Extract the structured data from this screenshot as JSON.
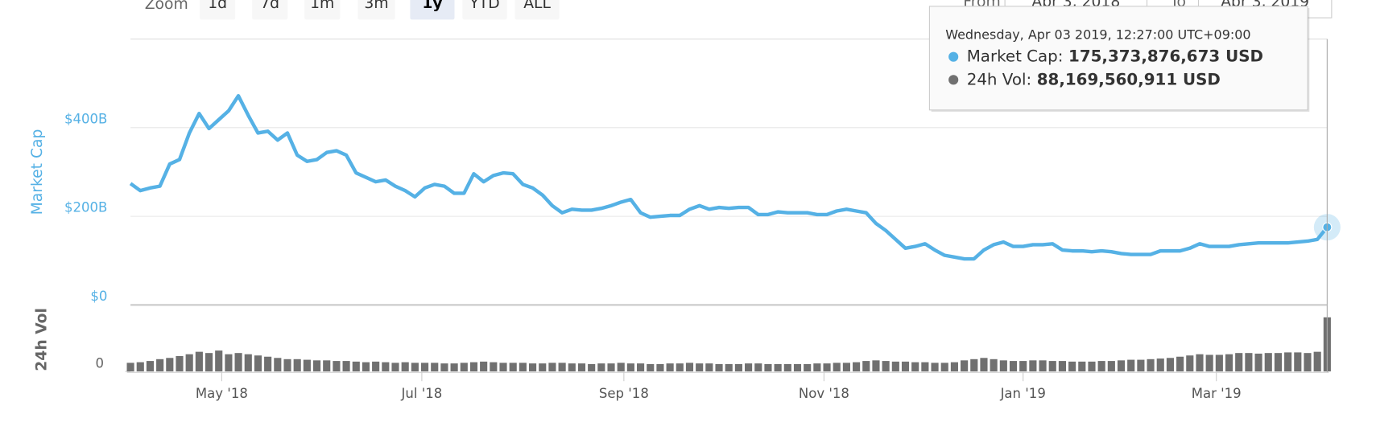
{
  "toolbar": {
    "zoom_label": "Zoom",
    "buttons": [
      "1d",
      "7d",
      "1m",
      "3m",
      "1y",
      "YTD",
      "ALL"
    ],
    "selected": "1y",
    "from_label": "From",
    "from_value": "Apr 3, 2018",
    "to_label": "To",
    "to_value": "Apr 3, 2019"
  },
  "tooltip": {
    "date": "Wednesday, Apr 03 2019, 12:27:00 UTC+09:00",
    "rows": [
      {
        "label": "Market Cap:",
        "value": "175,373,876,673 USD",
        "color": "#55b1e5"
      },
      {
        "label": "24h Vol:",
        "value": "88,169,560,911 USD",
        "color": "#707070"
      }
    ]
  },
  "chart_data": {
    "type": "line",
    "xlim": [
      0,
      122
    ],
    "xticks": [
      {
        "value": 9.3,
        "label": "May '18"
      },
      {
        "value": 29.7,
        "label": "Jul '18"
      },
      {
        "value": 50.3,
        "label": "Sep '18"
      },
      {
        "value": 70.7,
        "label": "Nov '18"
      },
      {
        "value": 91,
        "label": "Jan '19"
      },
      {
        "value": 110.7,
        "label": "Mar '19"
      }
    ],
    "ylim": [
      0,
      600
    ],
    "yticks": [
      {
        "value": 0,
        "label": "$0"
      },
      {
        "value": 200,
        "label": "$200B"
      },
      {
        "value": 400,
        "label": "$400B"
      }
    ],
    "y2lim": [
      0,
      104
    ],
    "y2ticks": [
      0
    ],
    "grid": true,
    "series": [
      {
        "name": "Market Cap",
        "color": "#55b1e5",
        "values": [
          274,
          258,
          264,
          268,
          318,
          328,
          388,
          432,
          398,
          418,
          438,
          472,
          428,
          388,
          392,
          372,
          388,
          338,
          324,
          328,
          344,
          348,
          338,
          298,
          288,
          278,
          282,
          268,
          258,
          244,
          264,
          272,
          268,
          252,
          252,
          296,
          278,
          292,
          298,
          296,
          272,
          264,
          248,
          224,
          208,
          216,
          214,
          214,
          218,
          224,
          232,
          238,
          208,
          198,
          200,
          202,
          202,
          216,
          224,
          216,
          220,
          218,
          220,
          220,
          204,
          204,
          210,
          208,
          208,
          208,
          204,
          204,
          212,
          216,
          212,
          208,
          184,
          168,
          148,
          128,
          132,
          138,
          124,
          112,
          108,
          104,
          104,
          124,
          136,
          142,
          132,
          132,
          136,
          136,
          138,
          124,
          122,
          122,
          120,
          122,
          120,
          116,
          114,
          114,
          114,
          122,
          122,
          122,
          128,
          138,
          132,
          132,
          132,
          136,
          138,
          140,
          140,
          140,
          140,
          142,
          144,
          148,
          175.37
        ]
      },
      {
        "name": "24h Vol",
        "type": "bar",
        "axis": "y2",
        "color": "#707070",
        "values": [
          14,
          15,
          17,
          20,
          22,
          25,
          28,
          32,
          30,
          34,
          28,
          30,
          28,
          26,
          24,
          22,
          20,
          20,
          19,
          18,
          18,
          17,
          17,
          16,
          15,
          16,
          15,
          14,
          15,
          14,
          14,
          14,
          13,
          13,
          14,
          15,
          16,
          15,
          14,
          14,
          14,
          13,
          13,
          14,
          14,
          13,
          13,
          12,
          13,
          13,
          14,
          13,
          13,
          12,
          12,
          13,
          13,
          14,
          13,
          13,
          12,
          12,
          12,
          13,
          13,
          12,
          12,
          12,
          12,
          12,
          13,
          13,
          14,
          14,
          15,
          17,
          18,
          17,
          16,
          16,
          15,
          15,
          14,
          14,
          15,
          18,
          20,
          22,
          20,
          18,
          17,
          17,
          18,
          18,
          17,
          17,
          16,
          16,
          16,
          17,
          17,
          18,
          19,
          19,
          20,
          21,
          22,
          24,
          26,
          28,
          27,
          27,
          28,
          30,
          30,
          29,
          30,
          30,
          31,
          31,
          30,
          32,
          88.17
        ]
      }
    ]
  }
}
